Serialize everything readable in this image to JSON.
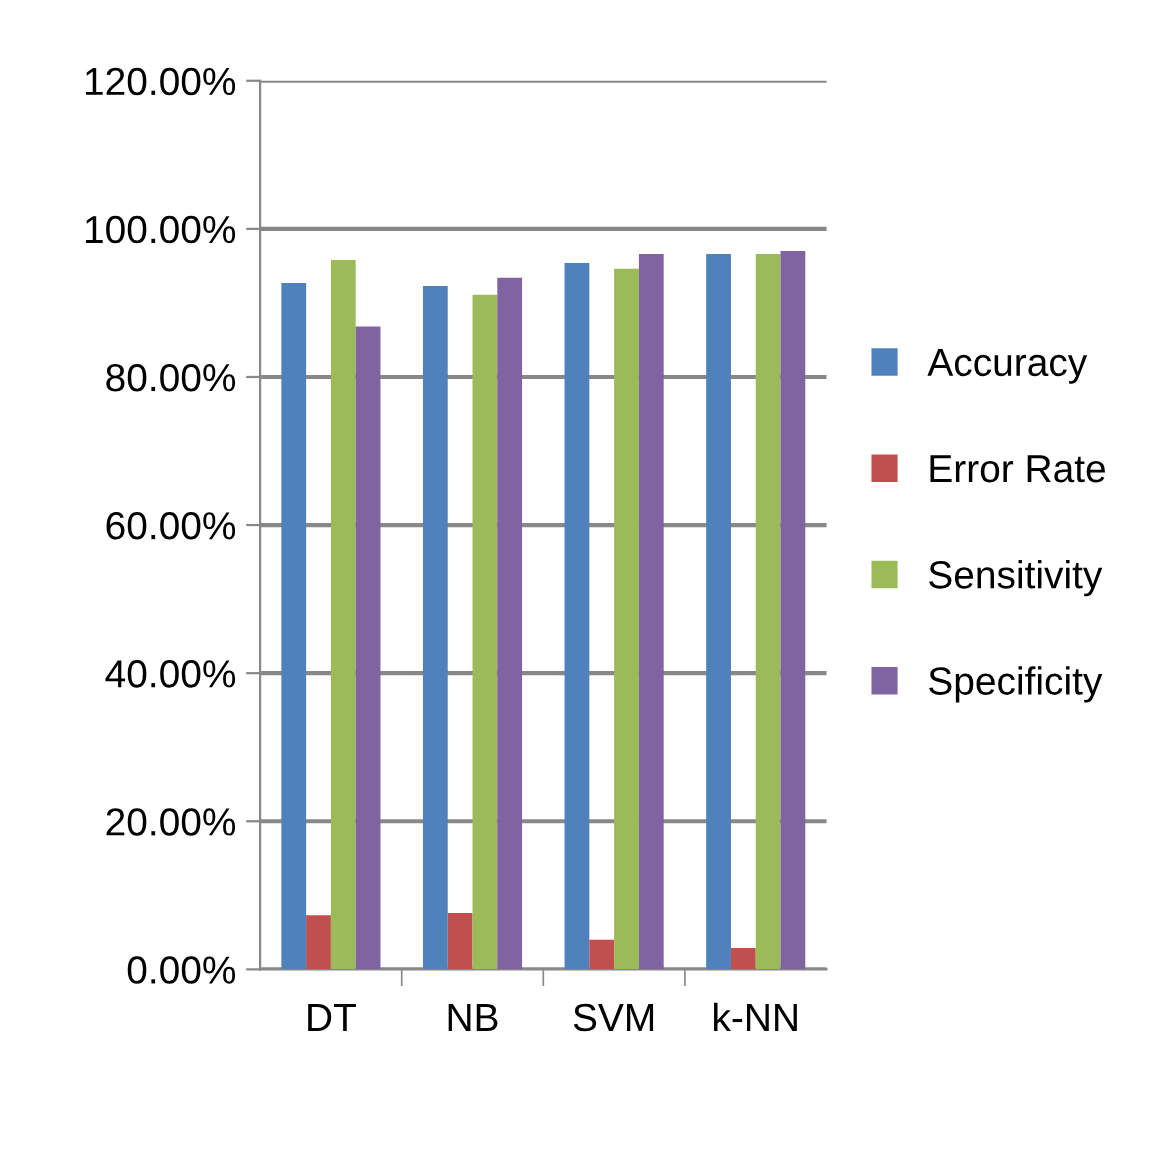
{
  "chart_data": {
    "type": "bar",
    "categories": [
      "DT",
      "NB",
      "SVM",
      "k-NN"
    ],
    "series": [
      {
        "name": "Accuracy",
        "color": "#4f81bd",
        "values": [
          92.7,
          92.3,
          95.4,
          96.6
        ]
      },
      {
        "name": "Error Rate",
        "color": "#c0504d",
        "values": [
          7.3,
          7.6,
          4.0,
          2.9
        ]
      },
      {
        "name": "Sensitivity",
        "color": "#9bbb59",
        "values": [
          95.8,
          91.1,
          94.6,
          96.6
        ]
      },
      {
        "name": "Specificity",
        "color": "#8064a2",
        "values": [
          86.8,
          93.4,
          96.6,
          97.0
        ]
      }
    ],
    "ylim": [
      0,
      120
    ],
    "yticks": [
      {
        "value": 0,
        "label": "0.00%"
      },
      {
        "value": 20,
        "label": "20.00%"
      },
      {
        "value": 40,
        "label": "40.00%"
      },
      {
        "value": 60,
        "label": "60.00%"
      },
      {
        "value": 80,
        "label": "80.00%"
      },
      {
        "value": 100,
        "label": "100.00%"
      },
      {
        "value": 120,
        "label": "120.00%"
      }
    ],
    "grid": "y",
    "legend": "right"
  }
}
